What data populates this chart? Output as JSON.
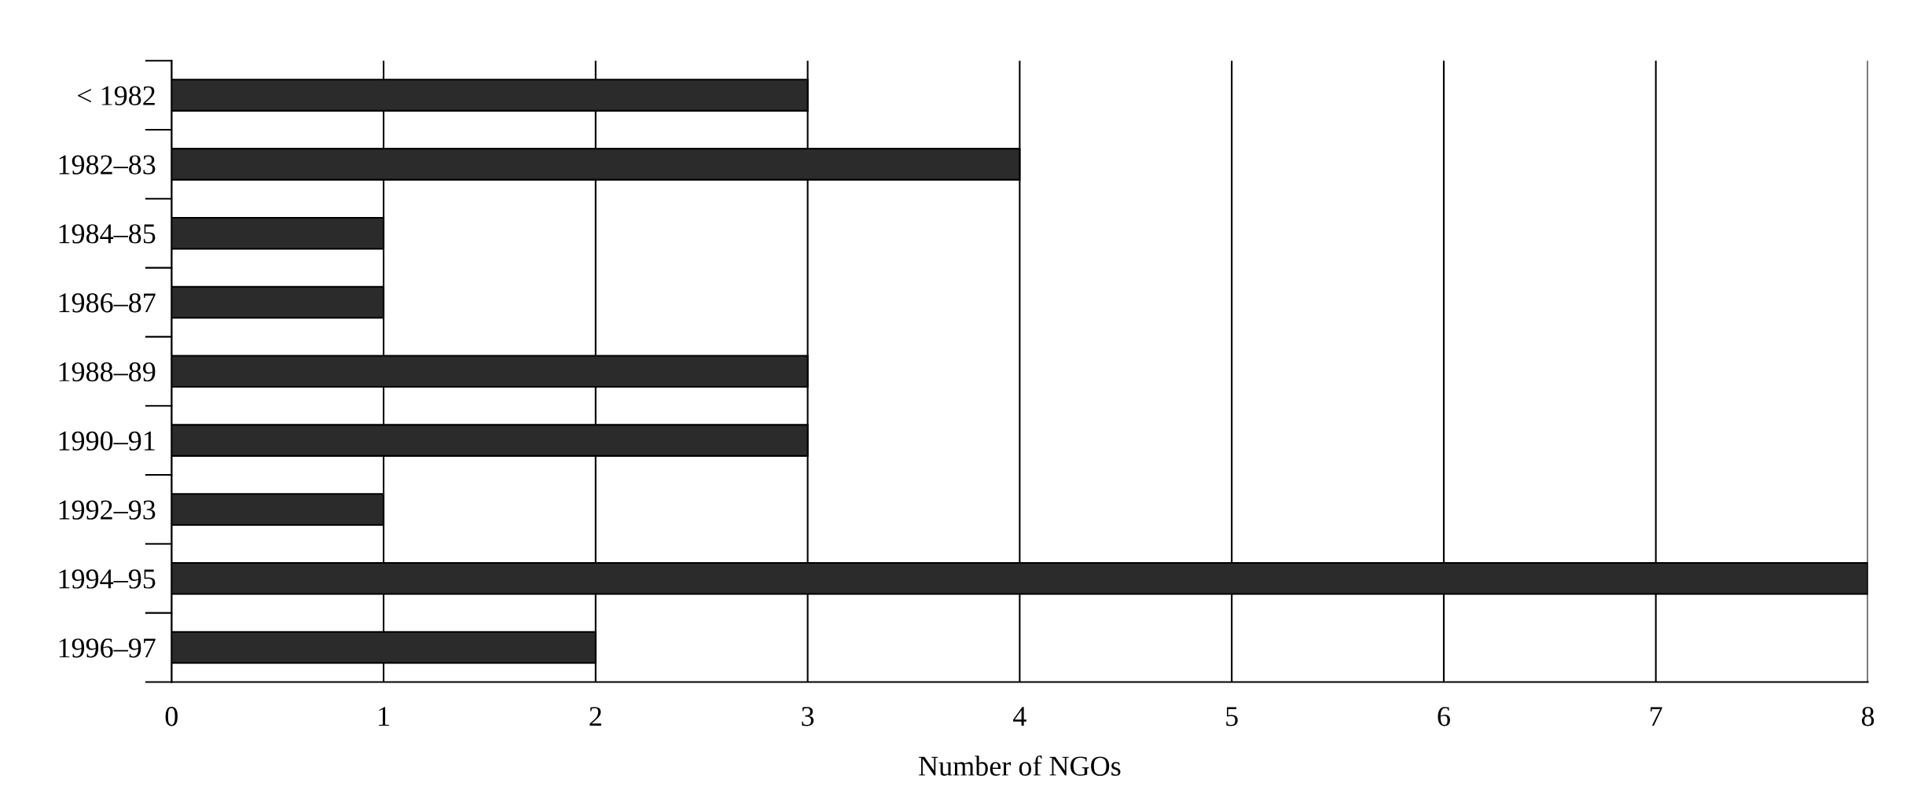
{
  "chart_data": {
    "type": "bar",
    "orientation": "horizontal",
    "xlabel": "Number of NGOs",
    "categories": [
      "< 1982",
      "1982–83",
      "1984–85",
      "1986–87",
      "1988–89",
      "1990–91",
      "1992–93",
      "1994–95",
      "1996–97"
    ],
    "values": [
      3,
      4,
      1,
      1,
      3,
      3,
      1,
      8,
      2
    ],
    "color": "#2b2b2b",
    "xlim": [
      0,
      8
    ],
    "xticks": [
      0,
      1,
      2,
      3,
      4,
      5,
      6,
      7,
      8
    ],
    "grid": "x"
  }
}
